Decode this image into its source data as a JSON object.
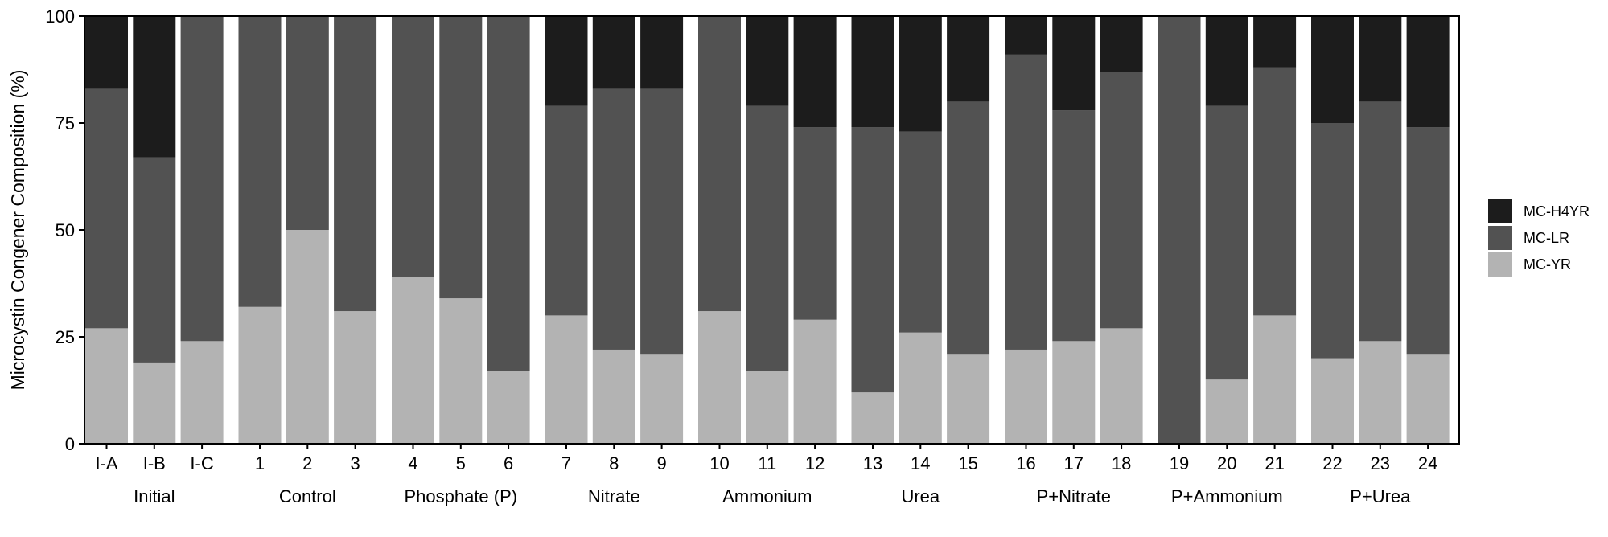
{
  "chart_data": {
    "type": "bar",
    "stacked": true,
    "ylabel": "Microcystin Congener Composition (%)",
    "ylim": [
      0,
      100
    ],
    "yticks": [
      0,
      25,
      50,
      75,
      100
    ],
    "grid": false,
    "legend_position": "right",
    "categories": [
      "I-A",
      "I-B",
      "I-C",
      "1",
      "2",
      "3",
      "4",
      "5",
      "6",
      "7",
      "8",
      "9",
      "10",
      "11",
      "12",
      "13",
      "14",
      "15",
      "16",
      "17",
      "18",
      "19",
      "20",
      "21",
      "22",
      "23",
      "24"
    ],
    "groups": [
      {
        "label": "Initial",
        "categories": [
          "I-A",
          "I-B",
          "I-C"
        ]
      },
      {
        "label": "Control",
        "categories": [
          "1",
          "2",
          "3"
        ]
      },
      {
        "label": "Phosphate (P)",
        "categories": [
          "4",
          "5",
          "6"
        ]
      },
      {
        "label": "Nitrate",
        "categories": [
          "7",
          "8",
          "9"
        ]
      },
      {
        "label": "Ammonium",
        "categories": [
          "10",
          "11",
          "12"
        ]
      },
      {
        "label": "Urea",
        "categories": [
          "13",
          "14",
          "15"
        ]
      },
      {
        "label": "P+Nitrate",
        "categories": [
          "16",
          "17",
          "18"
        ]
      },
      {
        "label": "P+Ammonium",
        "categories": [
          "19",
          "20",
          "21"
        ]
      },
      {
        "label": "P+Urea",
        "categories": [
          "22",
          "23",
          "24"
        ]
      }
    ],
    "series": [
      {
        "name": "MC-YR",
        "color": "#b3b3b3",
        "values": [
          27,
          19,
          24,
          32,
          50,
          31,
          39,
          34,
          17,
          30,
          22,
          21,
          31,
          17,
          29,
          12,
          26,
          21,
          22,
          24,
          27,
          0,
          15,
          30,
          20,
          24,
          21
        ]
      },
      {
        "name": "MC-LR",
        "color": "#525252",
        "values": [
          56,
          48,
          76,
          68,
          50,
          69,
          61,
          66,
          83,
          49,
          61,
          62,
          69,
          62,
          45,
          62,
          47,
          59,
          69,
          54,
          60,
          100,
          64,
          58,
          55,
          56,
          53
        ]
      },
      {
        "name": "MC-H4YR",
        "color": "#1c1c1c",
        "values": [
          17,
          33,
          0,
          0,
          0,
          0,
          0,
          0,
          0,
          21,
          17,
          17,
          0,
          21,
          26,
          26,
          27,
          20,
          9,
          22,
          13,
          0,
          21,
          12,
          25,
          20,
          26
        ]
      }
    ],
    "legend_order": [
      "MC-H4YR",
      "MC-LR",
      "MC-YR"
    ]
  }
}
